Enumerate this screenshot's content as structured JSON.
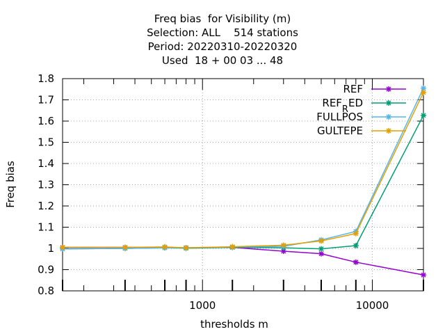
{
  "chart_data": {
    "type": "line",
    "title": [
      "Freq bias  for Visibility (m)",
      "Selection: ALL    514 stations",
      "Period: 20220310-20220320",
      "Used  18 + 00 03 ... 48"
    ],
    "xlabel": "thresholds m",
    "ylabel": "Freq bias",
    "x_scale": "log",
    "xlim": [
      150,
      20000
    ],
    "ylim": [
      0.8,
      1.8
    ],
    "x_ticks": [
      1000,
      10000
    ],
    "x_tick_labels": [
      "1000",
      "10000"
    ],
    "y_ticks": [
      0.8,
      0.9,
      1.0,
      1.1,
      1.2,
      1.3,
      1.4,
      1.5,
      1.6,
      1.7,
      1.8
    ],
    "y_tick_labels": [
      "0.8",
      "0.9",
      "1",
      "1.1",
      "1.2",
      "1.3",
      "1.4",
      "1.5",
      "1.6",
      "1.7",
      "1.8"
    ],
    "grid": true,
    "legend_position": "top-right",
    "x": [
      150,
      350,
      600,
      800,
      1500,
      3000,
      5000,
      8000,
      20000
    ],
    "series": [
      {
        "name": "REF",
        "color": "#9400d3",
        "values": [
          1.005,
          1.005,
          1.005,
          1.003,
          1.005,
          0.987,
          0.975,
          0.935,
          0.875
        ]
      },
      {
        "name": "REF_RED",
        "label_main": "REF",
        "label_sub": "R",
        "label_tail": "ED",
        "color": "#009e73",
        "values": [
          0.998,
          1.0,
          1.003,
          1.001,
          1.005,
          1.003,
          0.998,
          1.013,
          1.627
        ]
      },
      {
        "name": "FULLPOS",
        "color": "#56b4e9",
        "values": [
          0.998,
          1.0,
          1.003,
          1.003,
          1.007,
          1.01,
          1.04,
          1.08,
          1.755
        ]
      },
      {
        "name": "GULTEPE",
        "color": "#e69f00",
        "values": [
          1.005,
          1.005,
          1.007,
          1.003,
          1.008,
          1.015,
          1.035,
          1.07,
          1.735
        ]
      }
    ]
  }
}
